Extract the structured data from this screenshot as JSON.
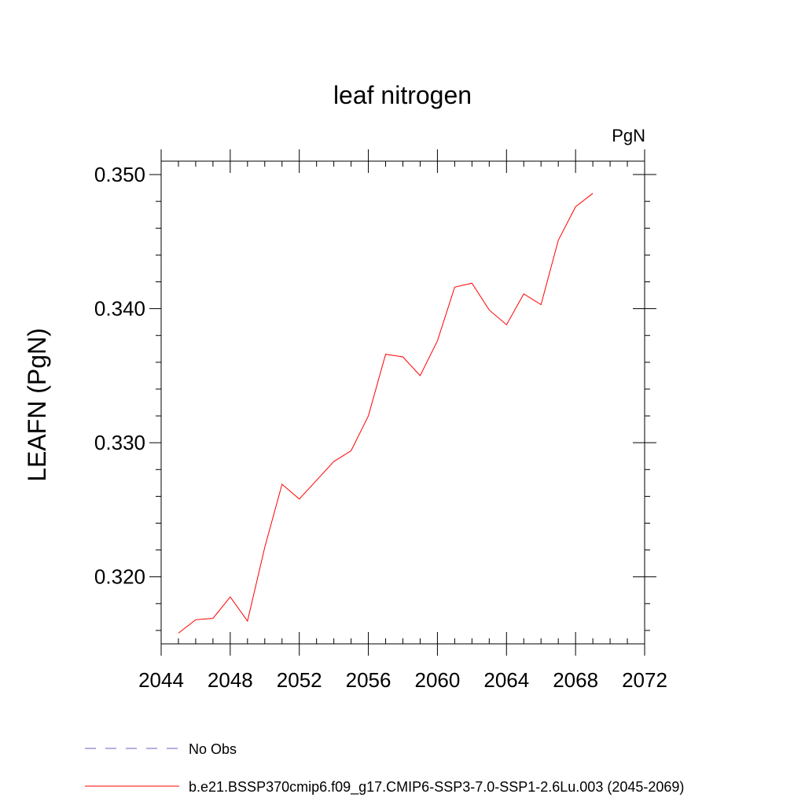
{
  "chart_data": {
    "type": "line",
    "title": "leaf nitrogen",
    "units_label": "PgN",
    "ylabel": "LEAFN  (PgN)",
    "xlabel": "",
    "xlim": [
      2044,
      2072
    ],
    "ylim": [
      0.315,
      0.351
    ],
    "x_major_ticks": [
      2044,
      2048,
      2052,
      2056,
      2060,
      2064,
      2068,
      2072
    ],
    "x_tick_labels": [
      "2044",
      "2048",
      "2052",
      "2056",
      "2060",
      "2064",
      "2068",
      "2072"
    ],
    "x_minor_step": 1,
    "y_major_ticks": [
      0.32,
      0.33,
      0.34,
      0.35
    ],
    "y_tick_labels": [
      "0.320",
      "0.330",
      "0.340",
      "0.350"
    ],
    "y_minor_step": 0.002,
    "grid": false,
    "legend_position": "bottom",
    "series": [
      {
        "name": "b.e21.BSSP370cmip6.f09_g17.CMIP6-SSP3-7.0-SSP1-2.6Lu.003 (2045-2069)",
        "color": "#ff0000",
        "style": "solid",
        "x": [
          2045,
          2046,
          2047,
          2048,
          2049,
          2050,
          2051,
          2052,
          2053,
          2054,
          2055,
          2056,
          2057,
          2058,
          2059,
          2060,
          2061,
          2062,
          2063,
          2064,
          2065,
          2066,
          2067,
          2068,
          2069
        ],
        "y": [
          0.3158,
          0.3168,
          0.3169,
          0.3185,
          0.3167,
          0.3222,
          0.3269,
          0.3258,
          0.3272,
          0.3286,
          0.3294,
          0.332,
          0.3366,
          0.3364,
          0.335,
          0.3376,
          0.3416,
          0.3419,
          0.3399,
          0.3388,
          0.3411,
          0.3403,
          0.3451,
          0.3476,
          0.3486
        ]
      }
    ],
    "legend": [
      {
        "label": "No Obs",
        "color": "#6b5fc6",
        "style": "dashed"
      },
      {
        "label": "b.e21.BSSP370cmip6.f09_g17.CMIP6-SSP3-7.0-SSP1-2.6Lu.003 (2045-2069)",
        "color": "#ff0000",
        "style": "solid"
      }
    ]
  }
}
